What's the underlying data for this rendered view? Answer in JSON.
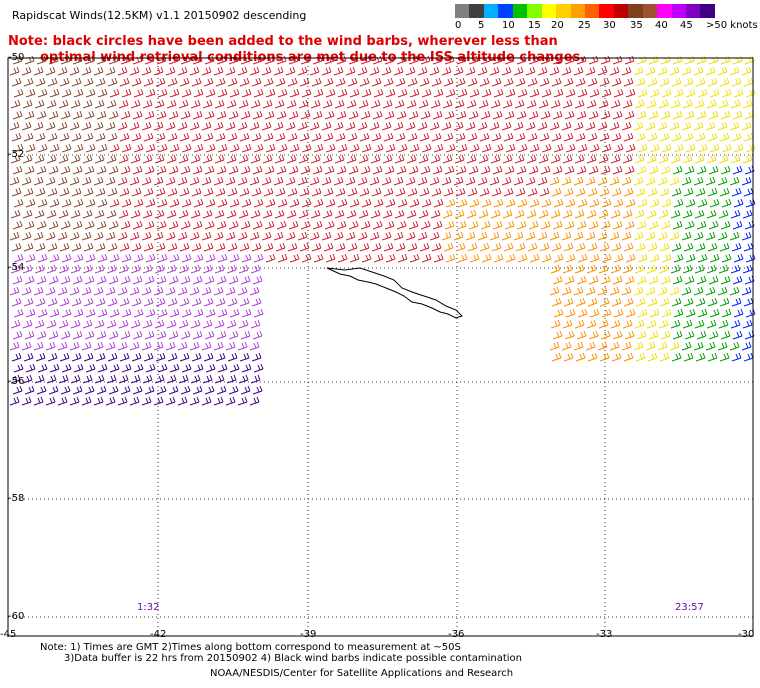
{
  "title": "Rapidscat Winds(12.5KM) v1.1 20150902 descending",
  "note": {
    "line1": "Note: black circles have been added to the wind barbs, wherever less than",
    "line2": "optimal wind retrieval conditions are met due to the ISS altitude changes."
  },
  "legend": {
    "labels": [
      "0",
      "5",
      "10",
      "15",
      "20",
      "25",
      "30",
      "35",
      "40",
      "45",
      ">50 knots"
    ],
    "colors": [
      "#808080",
      "#404040",
      "#00b0ff",
      "#0040ff",
      "#00c000",
      "#80ff00",
      "#ffff00",
      "#ffd000",
      "#ffa000",
      "#ff6000",
      "#ff0000",
      "#c00000",
      "#804020",
      "#a05030",
      "#ff00ff",
      "#c000ff",
      "#8000c0",
      "#400080"
    ]
  },
  "axes": {
    "lat_labels": [
      "-50",
      "-52",
      "-54",
      "-56",
      "-58",
      "-60"
    ],
    "lon_labels": [
      "-45",
      "-42",
      "-39",
      "-36",
      "-33",
      "-30"
    ]
  },
  "time_labels": {
    "left": "1:32",
    "right": "23:57"
  },
  "footnotes": {
    "line1": "Note: 1) Times are GMT 2)Times along bottom correspond to measurement at ~50S",
    "line2": "3)Data buffer is 22 hrs from 20150902 4) Black wind barbs indicate possible contamination"
  },
  "credit": "NOAA/NESDIS/Center for Satellite Applications and Research",
  "colors": {
    "note_text": "#e00000",
    "barb_purple": "#b040d0",
    "barb_dark_purple": "#400080",
    "barb_red": "#d02030",
    "barb_brown": "#8a4a30",
    "barb_orange": "#ff9000",
    "barb_yellow": "#f0e000",
    "barb_green": "#00a000",
    "barb_blue": "#0020ff",
    "coast": "#000000"
  }
}
